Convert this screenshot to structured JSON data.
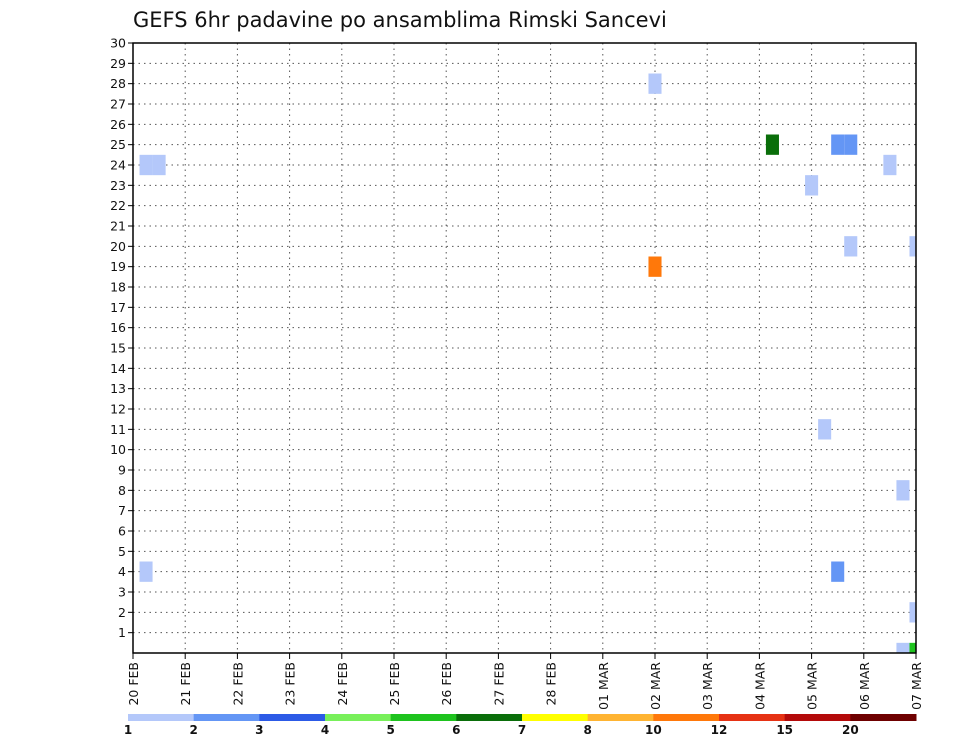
{
  "chart_data": {
    "type": "heatmap",
    "title": "GEFS 6hr padavine po ansamblima Rimski Sancevi",
    "xlabel": "",
    "ylabel": "",
    "x_tick_labels": [
      "20 FEB",
      "21 FEB",
      "22 FEB",
      "23 FEB",
      "24 FEB",
      "25 FEB",
      "26 FEB",
      "27 FEB",
      "28 FEB",
      "01 MAR",
      "02 MAR",
      "03 MAR",
      "04 MAR",
      "05 MAR",
      "06 MAR",
      "07 MAR"
    ],
    "y_tick_labels": [
      "1",
      "2",
      "3",
      "4",
      "5",
      "6",
      "7",
      "8",
      "9",
      "10",
      "11",
      "12",
      "13",
      "14",
      "15",
      "16",
      "17",
      "18",
      "19",
      "20",
      "21",
      "22",
      "23",
      "24",
      "25",
      "26",
      "27",
      "28",
      "29",
      "30"
    ],
    "xlim_days": [
      0,
      15
    ],
    "ylim": [
      0,
      30
    ],
    "grid": true,
    "colorbar": {
      "placement": "bottom",
      "labels": [
        "1",
        "2",
        "3",
        "4",
        "5",
        "6",
        "7",
        "8",
        "10",
        "12",
        "15",
        "20"
      ],
      "colors": [
        "#b4c8fa",
        "#6496f5",
        "#2c5ae6",
        "#78f05a",
        "#1ec31e",
        "#0a6e0a",
        "#ffff00",
        "#ffb432",
        "#ff780a",
        "#e63214",
        "#b40a0a",
        "#6e0000"
      ]
    },
    "cells": [
      {
        "time_days": 0.25,
        "member": 24,
        "value": 1.5
      },
      {
        "time_days": 0.5,
        "member": 24,
        "value": 1.5
      },
      {
        "time_days": 0.25,
        "member": 4,
        "value": 1.5
      },
      {
        "time_days": 10.0,
        "member": 28,
        "value": 1.5
      },
      {
        "time_days": 10.0,
        "member": 19,
        "value": 11
      },
      {
        "time_days": 12.25,
        "member": 25,
        "value": 6.5
      },
      {
        "time_days": 13.0,
        "member": 23,
        "value": 1.5
      },
      {
        "time_days": 13.5,
        "member": 25,
        "value": 2.5
      },
      {
        "time_days": 13.75,
        "member": 25,
        "value": 2.5
      },
      {
        "time_days": 13.75,
        "member": 20,
        "value": 1.5
      },
      {
        "time_days": 14.5,
        "member": 24,
        "value": 1.5
      },
      {
        "time_days": 13.25,
        "member": 11,
        "value": 1.5
      },
      {
        "time_days": 14.75,
        "member": 8,
        "value": 1.5
      },
      {
        "time_days": 13.5,
        "member": 4,
        "value": 2.5
      },
      {
        "time_days": 15.0,
        "member": 20,
        "value": 1.5
      },
      {
        "time_days": 15.0,
        "member": 2,
        "value": 1.5
      },
      {
        "time_days": 14.75,
        "member": 0,
        "value": 1.5
      },
      {
        "time_days": 15.0,
        "member": 0,
        "value": 5.5
      }
    ]
  }
}
